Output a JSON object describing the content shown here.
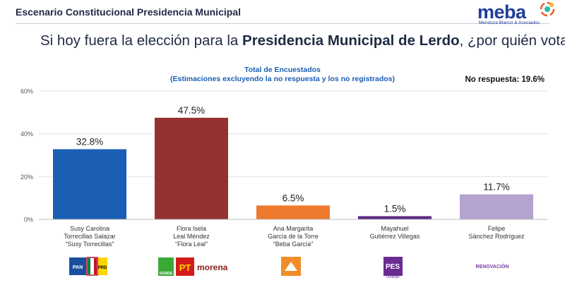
{
  "header": {
    "title": "Escenario Constitucional Presidencia Municipal"
  },
  "logo": {
    "word": "meba",
    "subtitle": "Mendoza Blanco & Asociados"
  },
  "question": {
    "prefix": "Si hoy fuera la elección para la ",
    "bold": "Presidencia Municipal de Lerdo",
    "suffix": ", ¿por quién votaría?"
  },
  "chart_data": {
    "type": "bar",
    "title": "Total de Encuestados",
    "subtitle": "(Estimaciones excluyendo la no respuesta y los no registrados)",
    "no_response_label": "No respuesta: 19.6%",
    "ylim": [
      0,
      60
    ],
    "yticks": [
      "0%",
      "20%",
      "40%",
      "60%"
    ],
    "ytick_values": [
      0,
      20,
      40,
      60
    ],
    "grid": true,
    "categories": [
      [
        "Susy Carolina",
        "Torrecillas Salazar",
        "“Susy Torrecillas”"
      ],
      [
        "Flora Isela",
        "Leal Méndez",
        "“Flora Leal”"
      ],
      [
        "Ana Margarita",
        "García de la Torre",
        "“Beba García”"
      ],
      [
        "Mayahuel",
        "Gutiérrez Villegas"
      ],
      [
        "Felipe",
        "Sánchez Rodríguez"
      ]
    ],
    "values": [
      32.8,
      47.5,
      6.5,
      1.5,
      11.7
    ],
    "value_labels": [
      "32.8%",
      "47.5%",
      "6.5%",
      "1.5%",
      "11.7%"
    ],
    "colors": [
      "#1a5fb4",
      "#943232",
      "#ee7a2e",
      "#5b2a82",
      "#b4a3cf"
    ]
  },
  "party_logos": [
    {
      "names": [
        "PAN",
        "PRI",
        "PRD"
      ],
      "icon": "pan-pri-prd-logos"
    },
    {
      "names": [
        "VERDE",
        "PT",
        "morena"
      ],
      "icon": "verde-pt-morena-logos"
    },
    {
      "names": [],
      "icon": "movimiento-ciudadano-logo"
    },
    {
      "names": [
        "PES",
        "Durango"
      ],
      "icon": "pes-logo"
    },
    {
      "names": [
        "RENOVACIÓN"
      ],
      "icon": "renovacion-logo"
    }
  ]
}
